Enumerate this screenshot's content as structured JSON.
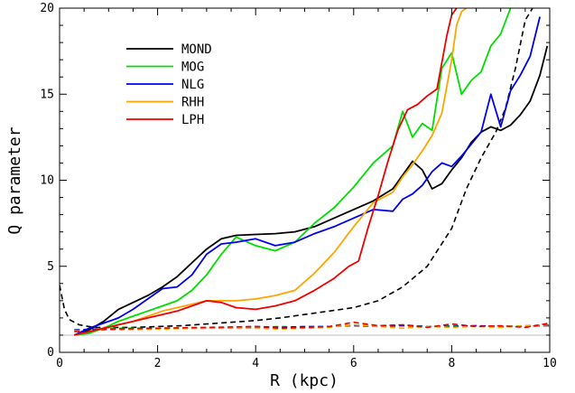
{
  "chart_data": {
    "type": "line",
    "xlabel": "R (kpc)",
    "ylabel": "Q parameter",
    "xlim": [
      0,
      10
    ],
    "ylim": [
      0,
      20
    ],
    "xticks": [
      0,
      2,
      4,
      6,
      8,
      10
    ],
    "yticks": [
      0,
      5,
      10,
      15,
      20
    ],
    "grid": false,
    "legend_position": "top-left",
    "reference_line": {
      "y": 1.0,
      "color": "#bbbbbb"
    },
    "series": [
      {
        "name": "MOND",
        "color": "#000000",
        "style": "solid",
        "in_legend": true,
        "x": [
          0.3,
          0.6,
          0.9,
          1.2,
          1.5,
          1.8,
          2.1,
          2.4,
          2.7,
          3.0,
          3.3,
          3.6,
          4.0,
          4.4,
          4.8,
          5.2,
          5.6,
          6.0,
          6.4,
          6.8,
          7.0,
          7.2,
          7.4,
          7.6,
          7.8,
          8.0,
          8.2,
          8.4,
          8.6,
          8.8,
          9.0,
          9.2,
          9.4,
          9.6,
          9.8,
          9.95
        ],
        "y": [
          1.0,
          1.3,
          1.8,
          2.5,
          2.9,
          3.3,
          3.8,
          4.4,
          5.2,
          6.0,
          6.6,
          6.8,
          6.85,
          6.9,
          7.0,
          7.3,
          7.8,
          8.3,
          8.8,
          9.5,
          10.3,
          11.1,
          10.6,
          9.5,
          9.8,
          10.6,
          11.3,
          12.2,
          12.8,
          13.1,
          12.9,
          13.2,
          13.8,
          14.6,
          16.1,
          17.8
        ]
      },
      {
        "name": "MOND (dashed)",
        "color": "#000000",
        "style": "dashed",
        "in_legend": false,
        "x": [
          0.0,
          0.1,
          0.2,
          0.4,
          0.7,
          1.0,
          1.5,
          2.0,
          2.5,
          3.0,
          3.5,
          4.0,
          4.5,
          5.0,
          5.5,
          6.0,
          6.5,
          7.0,
          7.5,
          8.0,
          8.3,
          8.6,
          8.9,
          9.1,
          9.3,
          9.5,
          9.65
        ],
        "y": [
          3.9,
          2.5,
          1.9,
          1.6,
          1.45,
          1.45,
          1.45,
          1.5,
          1.55,
          1.65,
          1.75,
          1.85,
          2.0,
          2.2,
          2.4,
          2.6,
          3.0,
          3.8,
          5.0,
          7.2,
          9.5,
          11.3,
          12.8,
          14.2,
          16.5,
          19.3,
          20.0
        ]
      },
      {
        "name": "MOG",
        "color": "#00dd00",
        "style": "solid",
        "in_legend": true,
        "x": [
          0.3,
          0.6,
          0.9,
          1.2,
          1.5,
          1.8,
          2.1,
          2.4,
          2.7,
          3.0,
          3.3,
          3.6,
          4.0,
          4.4,
          4.8,
          5.2,
          5.6,
          6.0,
          6.4,
          6.8,
          7.0,
          7.2,
          7.4,
          7.6,
          7.8,
          8.0,
          8.2,
          8.4,
          8.6,
          8.8,
          9.0,
          9.2
        ],
        "y": [
          1.0,
          1.1,
          1.4,
          1.8,
          2.1,
          2.4,
          2.7,
          3.0,
          3.6,
          4.5,
          5.7,
          6.7,
          6.2,
          5.9,
          6.4,
          7.5,
          8.4,
          9.6,
          11.0,
          12.0,
          14.0,
          12.5,
          13.3,
          12.9,
          16.5,
          17.4,
          15.0,
          15.8,
          16.3,
          17.8,
          18.5,
          20.0
        ]
      },
      {
        "name": "NLG",
        "color": "#0000ee",
        "style": "solid",
        "in_legend": true,
        "x": [
          0.3,
          0.6,
          0.9,
          1.2,
          1.5,
          1.8,
          2.1,
          2.4,
          2.7,
          3.0,
          3.3,
          3.6,
          4.0,
          4.4,
          4.8,
          5.2,
          5.6,
          6.0,
          6.4,
          6.8,
          7.0,
          7.2,
          7.4,
          7.6,
          7.8,
          8.0,
          8.2,
          8.4,
          8.6,
          8.8,
          9.0,
          9.2,
          9.4,
          9.6,
          9.8
        ],
        "y": [
          1.0,
          1.4,
          1.7,
          2.0,
          2.5,
          3.1,
          3.7,
          3.8,
          4.5,
          5.7,
          6.3,
          6.4,
          6.6,
          6.2,
          6.4,
          6.9,
          7.3,
          7.8,
          8.3,
          8.2,
          8.9,
          9.2,
          9.7,
          10.5,
          11.0,
          10.8,
          11.4,
          12.1,
          12.8,
          15.0,
          13.1,
          15.2,
          16.1,
          17.2,
          19.5
        ]
      },
      {
        "name": "RHH",
        "color": "#ffa500",
        "style": "solid",
        "in_legend": true,
        "x": [
          0.3,
          0.6,
          0.9,
          1.2,
          1.5,
          1.8,
          2.1,
          2.4,
          2.7,
          3.0,
          3.3,
          3.6,
          4.0,
          4.4,
          4.8,
          5.2,
          5.6,
          6.0,
          6.4,
          6.8,
          7.0,
          7.2,
          7.4,
          7.6,
          7.8,
          8.0,
          8.1,
          8.2,
          8.3
        ],
        "y": [
          1.0,
          1.2,
          1.4,
          1.6,
          1.8,
          2.1,
          2.4,
          2.6,
          2.8,
          3.0,
          3.0,
          3.0,
          3.1,
          3.3,
          3.6,
          4.6,
          5.8,
          7.3,
          8.7,
          9.3,
          10.2,
          10.9,
          11.7,
          12.6,
          13.9,
          17.0,
          19.0,
          19.8,
          20.0
        ]
      },
      {
        "name": "LPH",
        "color": "#ee0000",
        "style": "solid",
        "in_legend": true,
        "x": [
          0.3,
          0.6,
          0.9,
          1.2,
          1.5,
          1.8,
          2.1,
          2.4,
          2.7,
          3.0,
          3.3,
          3.6,
          4.0,
          4.4,
          4.8,
          5.2,
          5.6,
          5.9,
          6.1,
          6.3,
          6.5,
          6.7,
          6.9,
          7.1,
          7.3,
          7.5,
          7.7,
          7.9,
          8.0,
          8.1
        ],
        "y": [
          1.0,
          1.2,
          1.4,
          1.6,
          1.8,
          2.0,
          2.2,
          2.4,
          2.7,
          3.0,
          2.9,
          2.6,
          2.5,
          2.7,
          3.0,
          3.6,
          4.3,
          5.0,
          5.3,
          7.3,
          9.1,
          11.1,
          12.9,
          14.1,
          14.4,
          14.9,
          15.3,
          18.4,
          19.6,
          20.0
        ]
      },
      {
        "name": "MOG (dashed)",
        "color": "#00dd00",
        "style": "dashed",
        "in_legend": false,
        "x": [
          0.3,
          1.0,
          2.0,
          3.0,
          4.0,
          4.5,
          5.0,
          5.5,
          6.0,
          6.5,
          7.0,
          7.5,
          8.0,
          8.5,
          9.0,
          9.5,
          10.0
        ],
        "y": [
          1.3,
          1.4,
          1.4,
          1.45,
          1.45,
          1.5,
          1.45,
          1.5,
          1.6,
          1.55,
          1.6,
          1.5,
          1.55,
          1.55,
          1.5,
          1.55,
          1.6
        ]
      },
      {
        "name": "NLG (dashed)",
        "color": "#0000ee",
        "style": "dashed",
        "in_legend": false,
        "x": [
          0.3,
          1.0,
          2.0,
          3.0,
          4.0,
          4.5,
          5.0,
          5.5,
          6.0,
          6.5,
          7.0,
          7.5,
          8.0,
          8.5,
          9.0,
          9.5,
          10.0
        ],
        "y": [
          1.3,
          1.35,
          1.4,
          1.4,
          1.5,
          1.45,
          1.5,
          1.5,
          1.55,
          1.5,
          1.55,
          1.5,
          1.5,
          1.55,
          1.5,
          1.5,
          1.55
        ]
      },
      {
        "name": "RHH (dashed)",
        "color": "#ffa500",
        "style": "dashed",
        "in_legend": false,
        "x": [
          0.3,
          1.0,
          2.0,
          3.0,
          4.0,
          4.5,
          5.0,
          5.5,
          6.0,
          6.5,
          7.0,
          7.5,
          8.0,
          8.5,
          9.0,
          9.5,
          10.0
        ],
        "y": [
          1.25,
          1.3,
          1.35,
          1.4,
          1.4,
          1.35,
          1.4,
          1.45,
          1.6,
          1.5,
          1.4,
          1.5,
          1.45,
          1.5,
          1.45,
          1.55,
          1.5
        ]
      },
      {
        "name": "LPH (dashed)",
        "color": "#ee0000",
        "style": "dashed",
        "in_legend": false,
        "x": [
          0.3,
          1.0,
          2.0,
          3.0,
          4.0,
          4.5,
          5.0,
          5.5,
          6.0,
          6.5,
          7.0,
          7.5,
          8.0,
          8.5,
          9.0,
          9.5,
          10.0
        ],
        "y": [
          1.2,
          1.35,
          1.4,
          1.45,
          1.5,
          1.4,
          1.45,
          1.5,
          1.75,
          1.55,
          1.6,
          1.45,
          1.65,
          1.5,
          1.55,
          1.45,
          1.7
        ]
      }
    ]
  }
}
